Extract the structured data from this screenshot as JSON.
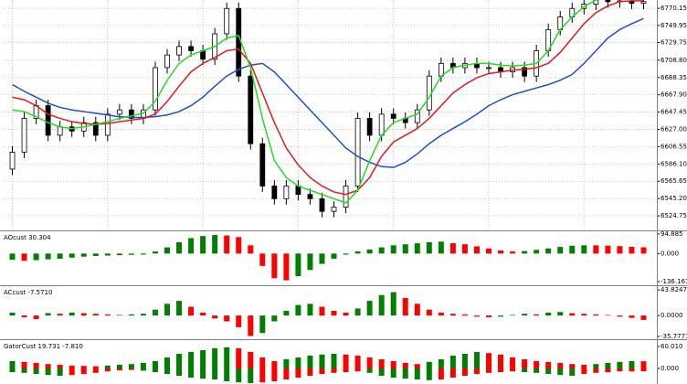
{
  "chart_data": [
    {
      "type": "candlestick",
      "up_color": "#ffffff",
      "down_color": "#000000",
      "grid": true,
      "ylim": [
        6507.5,
        6780
      ],
      "yticks": [
        6770.15,
        6749.95,
        6729.75,
        {
          "value": 6708.8,
          "label": "6708.80"
        },
        6688.35,
        {
          "value": 6667.9,
          "label": "6667.90"
        },
        6647.45,
        {
          "value": 6627,
          "label": "6627.00"
        },
        6606.55,
        {
          "value": 6586.1,
          "label": "6586.10"
        },
        6565.65,
        {
          "value": 6545.2,
          "label": "6545.20"
        },
        6524.75
      ],
      "open": [
        6580,
        6600,
        6640,
        6655,
        6620,
        6630,
        6625,
        6635,
        6620,
        6645,
        6650,
        6640,
        6650,
        6700,
        6715,
        6725,
        6720,
        6710,
        6740,
        6770,
        6690,
        6610,
        6560,
        6545,
        6560,
        6550,
        6545,
        6530,
        6535,
        6560,
        6640,
        6620,
        6645,
        6640,
        6635,
        6650,
        6690,
        6705,
        6700,
        6705,
        6700,
        6700,
        6695,
        6700,
        6690,
        6720,
        6745,
        6760,
        6770,
        6775,
        6780,
        6778,
        6779,
        6776
      ],
      "high": [
        6607,
        6647,
        6662,
        6662,
        6637,
        6637,
        6642,
        6642,
        6652,
        6657,
        6657,
        6657,
        6707,
        6722,
        6732,
        6732,
        6727,
        6747,
        6777,
        6777,
        6697,
        6617,
        6567,
        6567,
        6567,
        6557,
        6552,
        6542,
        6567,
        6647,
        6647,
        6652,
        6652,
        6647,
        6657,
        6697,
        6712,
        6712,
        6712,
        6712,
        6707,
        6707,
        6707,
        6707,
        6727,
        6752,
        6767,
        6777,
        6782,
        6787,
        6787,
        6786,
        6786,
        6785
      ],
      "low": [
        6573,
        6593,
        6633,
        6613,
        6613,
        6618,
        6618,
        6613,
        6613,
        6638,
        6633,
        6633,
        6643,
        6693,
        6708,
        6713,
        6703,
        6703,
        6733,
        6683,
        6603,
        6553,
        6538,
        6538,
        6543,
        6538,
        6523,
        6523,
        6528,
        6553,
        6613,
        6613,
        6633,
        6628,
        6628,
        6643,
        6683,
        6693,
        6693,
        6693,
        6693,
        6688,
        6688,
        6683,
        6683,
        6713,
        6738,
        6753,
        6763,
        6768,
        6771,
        6771,
        6769,
        6769
      ],
      "close": [
        6600,
        6640,
        6655,
        6620,
        6630,
        6625,
        6635,
        6620,
        6645,
        6650,
        6640,
        6650,
        6700,
        6715,
        6725,
        6720,
        6710,
        6740,
        6770,
        6690,
        6610,
        6560,
        6545,
        6560,
        6550,
        6545,
        6530,
        6535,
        6560,
        6640,
        6620,
        6645,
        6640,
        6635,
        6650,
        6690,
        6705,
        6700,
        6705,
        6700,
        6700,
        6695,
        6700,
        6690,
        6720,
        6745,
        6760,
        6770,
        6775,
        6780,
        6778,
        6779,
        6776,
        6778
      ],
      "series": [
        {
          "color": "#1f4fd0",
          "values": [
            6680,
            6672,
            6665,
            6658,
            6653,
            6650,
            6648,
            6646,
            6644,
            6642,
            6641,
            6641,
            6642,
            6644,
            6648,
            6655,
            6665,
            6678,
            6690,
            6698,
            6703,
            6705,
            6695,
            6680,
            6665,
            6650,
            6635,
            6620,
            6605,
            6595,
            6588,
            6583,
            6582,
            6588,
            6598,
            6610,
            6620,
            6628,
            6636,
            6645,
            6655,
            6662,
            6668,
            6672,
            6676,
            6680,
            6685,
            6692,
            6705,
            6720,
            6735,
            6745,
            6752,
            6758
          ]
        },
        {
          "color": "#e31a1c",
          "values": [
            6665,
            6662,
            6655,
            6645,
            6640,
            6636,
            6634,
            6633,
            6634,
            6636,
            6638,
            6640,
            6645,
            6660,
            6678,
            6695,
            6705,
            6712,
            6720,
            6722,
            6705,
            6670,
            6635,
            6605,
            6585,
            6570,
            6560,
            6553,
            6550,
            6555,
            6570,
            6595,
            6612,
            6620,
            6628,
            6640,
            6655,
            6670,
            6680,
            6688,
            6693,
            6695,
            6697,
            6698,
            6700,
            6705,
            6718,
            6735,
            6752,
            6765,
            6773,
            6778,
            6779,
            6779
          ]
        },
        {
          "color": "#22dd22",
          "values": [
            6650,
            6648,
            6642,
            6635,
            6630,
            6628,
            6630,
            6633,
            6636,
            6640,
            6643,
            6646,
            6660,
            6685,
            6705,
            6715,
            6720,
            6725,
            6735,
            6738,
            6700,
            6640,
            6590,
            6570,
            6560,
            6555,
            6550,
            6545,
            6540,
            6555,
            6590,
            6620,
            6635,
            6640,
            6645,
            6665,
            6690,
            6700,
            6703,
            6705,
            6705,
            6703,
            6702,
            6703,
            6705,
            6720,
            6745,
            6760,
            6772,
            6780,
            6784,
            6786,
            6786,
            6786
          ]
        }
      ]
    },
    {
      "type": "bar",
      "title": "AOcust 30.304",
      "up_color": "#008000",
      "down_color": "#ff0000",
      "ylim": [
        -154,
        108
      ],
      "yticks": [
        94.885,
        {
          "value": 0,
          "label": "0.000"
        },
        -136.161
      ],
      "values": [
        -30,
        -35,
        -32,
        -28,
        -25,
        -20,
        -15,
        -12,
        -10,
        -8,
        -6,
        -5,
        10,
        30,
        55,
        75,
        85,
        90,
        88,
        80,
        40,
        -60,
        -120,
        -130,
        -110,
        -80,
        -50,
        -25,
        -5,
        10,
        20,
        30,
        40,
        45,
        50,
        55,
        58,
        50,
        45,
        35,
        25,
        15,
        10,
        12,
        18,
        25,
        32,
        38,
        40,
        40,
        38,
        36,
        33,
        30.304
      ]
    },
    {
      "type": "bar",
      "title": "ACcust -7.5710",
      "up_color": "#008000",
      "down_color": "#ff0000",
      "ylim": [
        -40.5,
        50.2
      ],
      "yticks": [
        43.8247,
        {
          "value": 0,
          "label": "0.0000"
        },
        -35.7771
      ],
      "values": [
        5,
        -3,
        -6,
        4,
        3,
        5,
        4,
        3,
        2,
        1,
        2,
        3,
        10,
        20,
        25,
        15,
        5,
        -5,
        -10,
        -20,
        -35,
        -30,
        -10,
        8,
        18,
        20,
        15,
        8,
        5,
        12,
        25,
        35,
        40,
        30,
        20,
        10,
        5,
        3,
        2,
        -2,
        -3,
        -2,
        1,
        3,
        2,
        5,
        6,
        4,
        3,
        2,
        1,
        -2,
        -4,
        -7.571
      ]
    },
    {
      "type": "gator",
      "title": "GatorCust 19.731 -7.810",
      "up_color": "#008000",
      "down_color": "#ff0000",
      "ylim": [
        -42.5,
        77.5
      ],
      "yticks": [
        {
          "value": 60.01,
          "label": "60.010"
        },
        {
          "value": 0,
          "label": "0.000"
        }
      ],
      "series": [
        {
          "values": [
            20,
            18,
            15,
            12,
            10,
            8,
            7,
            6,
            8,
            10,
            12,
            15,
            20,
            30,
            40,
            45,
            50,
            55,
            58,
            55,
            45,
            30,
            20,
            25,
            30,
            35,
            38,
            40,
            38,
            35,
            30,
            25,
            20,
            15,
            12,
            18,
            25,
            35,
            40,
            45,
            42,
            38,
            30,
            25,
            20,
            18,
            15,
            12,
            10,
            12,
            15,
            18,
            20,
            19.731
          ]
        },
        {
          "values": [
            -10,
            -12,
            -15,
            -18,
            -20,
            -18,
            -15,
            -12,
            -8,
            -5,
            -4,
            -6,
            -10,
            -15,
            -20,
            -25,
            -28,
            -30,
            -35,
            -38,
            -40,
            -38,
            -35,
            -30,
            -25,
            -20,
            -15,
            -12,
            -10,
            -8,
            -12,
            -20,
            -25,
            -28,
            -30,
            -32,
            -30,
            -25,
            -20,
            -15,
            -12,
            -10,
            -8,
            -10,
            -12,
            -15,
            -18,
            -20,
            -15,
            -12,
            -10,
            -8,
            -8,
            -7.81
          ]
        }
      ]
    }
  ]
}
